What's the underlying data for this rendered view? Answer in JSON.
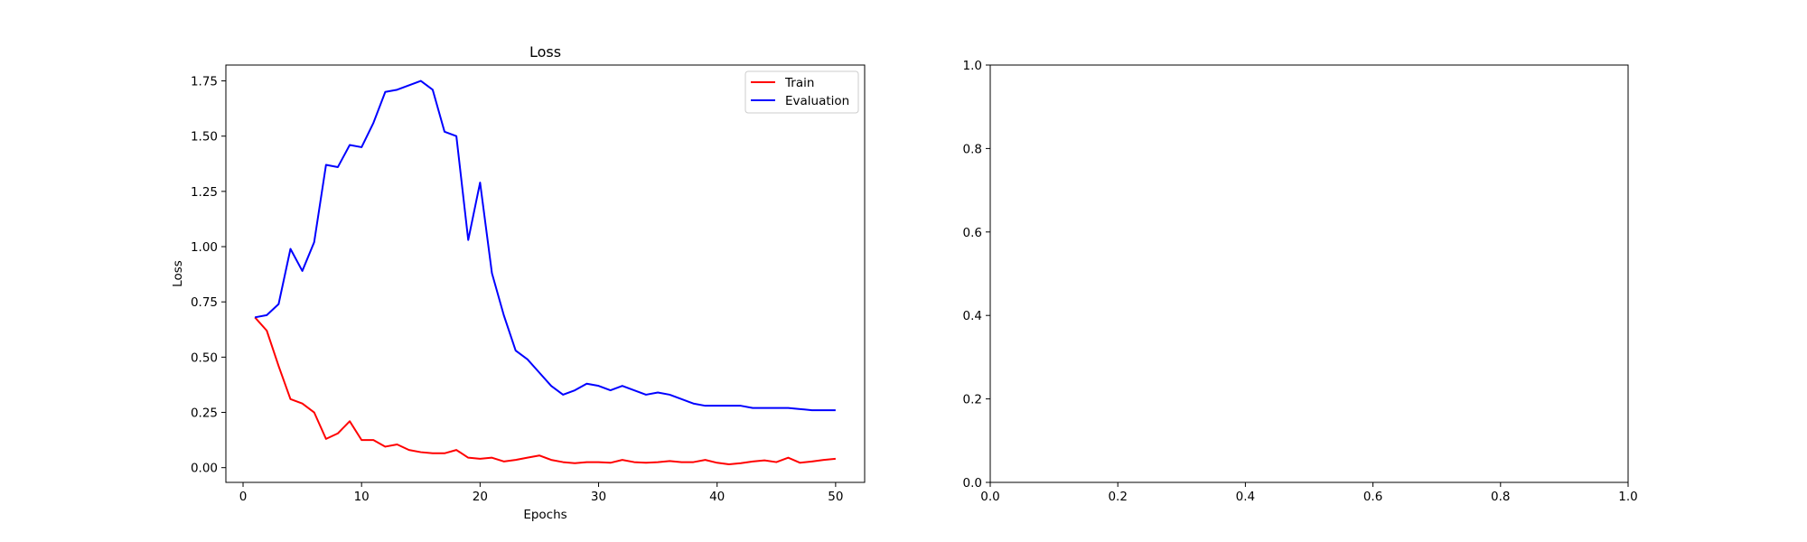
{
  "chart_data": [
    {
      "type": "line",
      "title": "Loss",
      "xlabel": "Epochs",
      "ylabel": "Loss",
      "xlim": [
        -1.45,
        52.45
      ],
      "ylim": [
        -0.0667,
        1.8217
      ],
      "x_ticks": [
        0,
        10,
        20,
        30,
        40,
        50
      ],
      "y_ticks": [
        0.0,
        0.25,
        0.5,
        0.75,
        1.0,
        1.25,
        1.5,
        1.75
      ],
      "x_tick_labels": [
        "0",
        "10",
        "20",
        "30",
        "40",
        "50"
      ],
      "y_tick_labels": [
        "0.00",
        "0.25",
        "0.50",
        "0.75",
        "1.00",
        "1.25",
        "1.50",
        "1.75"
      ],
      "grid": false,
      "legend_position": "top-right",
      "x": [
        1,
        2,
        3,
        4,
        5,
        6,
        7,
        8,
        9,
        10,
        11,
        12,
        13,
        14,
        15,
        16,
        17,
        18,
        19,
        20,
        21,
        22,
        23,
        24,
        25,
        26,
        27,
        28,
        29,
        30,
        31,
        32,
        33,
        34,
        35,
        36,
        37,
        38,
        39,
        40,
        41,
        42,
        43,
        44,
        45,
        46,
        47,
        48,
        49,
        50
      ],
      "series": [
        {
          "name": "Train",
          "color": "#ff0000",
          "values": [
            0.68,
            0.62,
            0.46,
            0.31,
            0.29,
            0.25,
            0.13,
            0.155,
            0.21,
            0.125,
            0.125,
            0.095,
            0.105,
            0.08,
            0.07,
            0.065,
            0.065,
            0.08,
            0.045,
            0.04,
            0.045,
            0.028,
            0.035,
            0.045,
            0.055,
            0.035,
            0.025,
            0.02,
            0.025,
            0.025,
            0.022,
            0.035,
            0.025,
            0.022,
            0.025,
            0.03,
            0.025,
            0.025,
            0.035,
            0.022,
            0.015,
            0.02,
            0.028,
            0.033,
            0.025,
            0.045,
            0.022,
            0.028,
            0.035,
            0.04
          ]
        },
        {
          "name": "Evaluation",
          "color": "#0000ff",
          "values": [
            0.68,
            0.69,
            0.74,
            0.99,
            0.89,
            1.02,
            1.37,
            1.36,
            1.46,
            1.45,
            1.56,
            1.7,
            1.71,
            1.73,
            1.75,
            1.71,
            1.52,
            1.5,
            1.03,
            1.29,
            0.88,
            0.69,
            0.53,
            0.49,
            0.43,
            0.37,
            0.33,
            0.35,
            0.38,
            0.37,
            0.35,
            0.37,
            0.35,
            0.33,
            0.34,
            0.33,
            0.31,
            0.29,
            0.28,
            0.28,
            0.28,
            0.28,
            0.27,
            0.27,
            0.27,
            0.27,
            0.265,
            0.26,
            0.26,
            0.26
          ]
        }
      ]
    },
    {
      "type": "line",
      "title": "",
      "xlabel": "",
      "ylabel": "",
      "xlim": [
        0.0,
        1.0
      ],
      "ylim": [
        0.0,
        1.0
      ],
      "x_ticks": [
        0.0,
        0.2,
        0.4,
        0.6,
        0.8,
        1.0
      ],
      "y_ticks": [
        0.0,
        0.2,
        0.4,
        0.6,
        0.8,
        1.0
      ],
      "x_tick_labels": [
        "0.0",
        "0.2",
        "0.4",
        "0.6",
        "0.8",
        "1.0"
      ],
      "y_tick_labels": [
        "0.0",
        "0.2",
        "0.4",
        "0.6",
        "0.8",
        "1.0"
      ],
      "grid": false,
      "series": []
    }
  ]
}
